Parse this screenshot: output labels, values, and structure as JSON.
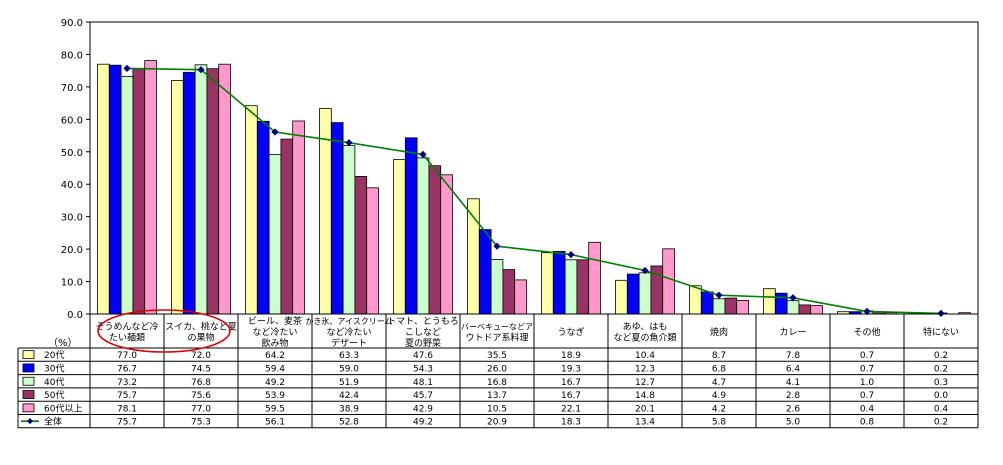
{
  "chart_data": {
    "type": "bar",
    "title": "",
    "xlabel": "",
    "ylabel": "（%）",
    "ylim": [
      0,
      90
    ],
    "yticks": [
      "0.0",
      "10.0",
      "20.0",
      "30.0",
      "40.0",
      "50.0",
      "60.0",
      "70.0",
      "80.0",
      "90.0"
    ],
    "grid": false,
    "legend_placement": "table-left",
    "categories": [
      [
        "そうめんなど冷",
        "たい麺類"
      ],
      [
        "スイカ、桃など夏",
        "の果物"
      ],
      [
        "ビール、麦茶",
        "など冷たい",
        "飲み物"
      ],
      [
        "かき氷、アイスクリーム",
        "など冷たい",
        "デザート"
      ],
      [
        "トマト、とうもろ",
        "こしなど",
        "夏の野菜"
      ],
      [
        "バーベキューなどア",
        "ウトドア系料理"
      ],
      [
        "うなぎ"
      ],
      [
        "あゆ、はも",
        "など夏の魚介類"
      ],
      [
        "焼肉"
      ],
      [
        "カレー"
      ],
      [
        "その他"
      ],
      [
        "特にない"
      ]
    ],
    "series": [
      {
        "name": "20代",
        "color": "#ffffa8",
        "values": [
          77.0,
          72.0,
          64.2,
          63.3,
          47.6,
          35.5,
          18.9,
          10.4,
          8.7,
          7.8,
          0.7,
          0.2
        ]
      },
      {
        "name": "30代",
        "color": "#0000ff",
        "values": [
          76.7,
          74.5,
          59.4,
          59.0,
          54.3,
          26.0,
          19.3,
          12.3,
          6.8,
          6.4,
          0.7,
          0.2
        ]
      },
      {
        "name": "40代",
        "color": "#ccffcc",
        "values": [
          73.2,
          76.8,
          49.2,
          51.9,
          48.1,
          16.8,
          16.7,
          12.7,
          4.7,
          4.1,
          1.0,
          0.3
        ]
      },
      {
        "name": "50代",
        "color": "#993366",
        "values": [
          75.7,
          75.6,
          53.9,
          42.4,
          45.7,
          13.7,
          16.7,
          14.8,
          4.9,
          2.8,
          0.7,
          0.0
        ]
      },
      {
        "name": "60代以上",
        "color": "#ff99cc",
        "values": [
          78.1,
          77.0,
          59.5,
          38.9,
          42.9,
          10.5,
          22.1,
          20.1,
          4.2,
          2.6,
          0.4,
          0.4
        ]
      }
    ],
    "total": {
      "name": "全体",
      "color": "#008000",
      "marker_color": "#000080",
      "values": [
        75.7,
        75.3,
        56.1,
        52.8,
        49.2,
        20.9,
        18.3,
        13.4,
        5.8,
        5.0,
        0.8,
        0.2
      ]
    },
    "highlight_color": "#e00000"
  }
}
